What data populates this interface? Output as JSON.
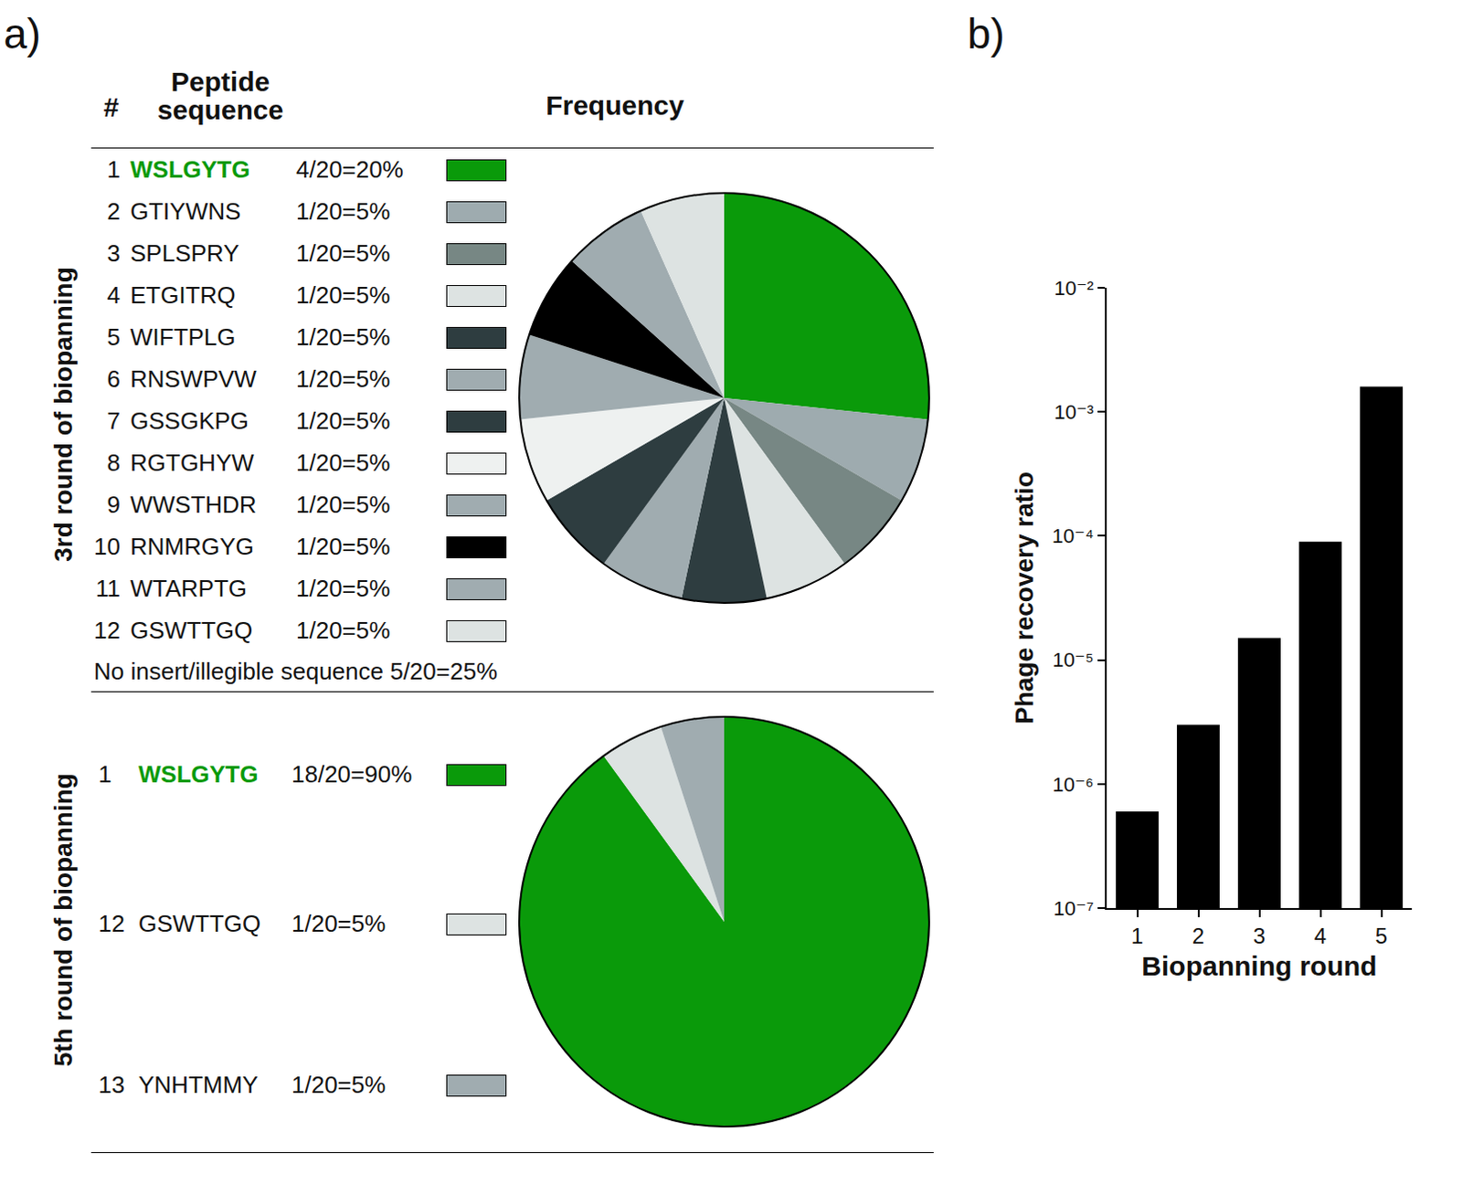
{
  "panel_labels": [
    "a)",
    "b)"
  ],
  "headers": {
    "number": "#",
    "sequence": "Peptide sequence",
    "frequency": "Frequency"
  },
  "chart_data": [
    {
      "type": "pie",
      "title": "3rd round of biopanning",
      "numbers": [
        1,
        2,
        3,
        4,
        5,
        6,
        7,
        8,
        9,
        10,
        11,
        12
      ],
      "categories": [
        "WSLGYTG",
        "GTIYWNS",
        "SPLSPRY",
        "ETGITRQ",
        "WIFTPLG",
        "RNSWPVW",
        "GSSGKPG",
        "RGTGHYW",
        "WWSTHDR",
        "RNMRGYG",
        "WTARPTG",
        "GSWTTGQ"
      ],
      "values": [
        20,
        5,
        5,
        5,
        5,
        5,
        5,
        5,
        5,
        5,
        5,
        5
      ],
      "value_labels": [
        "4/20=20%",
        "1/20=5%",
        "1/20=5%",
        "1/20=5%",
        "1/20=5%",
        "1/20=5%",
        "1/20=5%",
        "1/20=5%",
        "1/20=5%",
        "1/20=5%",
        "1/20=5%",
        "1/20=5%"
      ],
      "colors": [
        "#0a9a0a",
        "#9eabaf",
        "#778784",
        "#dde3e2",
        "#2e3d40",
        "#a0acb0",
        "#2e3d40",
        "#eef1f0",
        "#a0acb0",
        "#000000",
        "#a0acb0",
        "#dde3e2"
      ],
      "annotations": [
        "No insert/illegible sequence 5/20=25%"
      ]
    },
    {
      "type": "pie",
      "title": "5th round of biopanning",
      "numbers": [
        1,
        12,
        13
      ],
      "categories": [
        "WSLGYTG",
        "GSWTTGQ",
        "YNHTMMY"
      ],
      "values": [
        90,
        5,
        5
      ],
      "value_labels": [
        "18/20=90%",
        "1/20=5%",
        "1/20=5%"
      ],
      "colors": [
        "#0a9a0a",
        "#dde3e2",
        "#a0acb0"
      ]
    },
    {
      "type": "bar",
      "categories": [
        "1",
        "2",
        "3",
        "4",
        "5"
      ],
      "values": [
        6e-07,
        3e-06,
        1.5e-05,
        9e-05,
        0.0016
      ],
      "color": "#000000",
      "xlabel": "Biopanning round",
      "ylabel": "Phage recovery ratio",
      "log": "y",
      "ylim": [
        1e-07,
        0.01
      ],
      "yticks": [
        {
          "value": 1e-07,
          "label": "10⁻⁷"
        },
        {
          "value": 1e-06,
          "label": "10⁻⁶"
        },
        {
          "value": 1e-05,
          "label": "10⁻⁵"
        },
        {
          "value": 0.0001,
          "label": "10⁻⁴"
        },
        {
          "value": 0.001,
          "label": "10⁻³"
        },
        {
          "value": 0.01,
          "label": "10⁻²"
        }
      ]
    }
  ]
}
